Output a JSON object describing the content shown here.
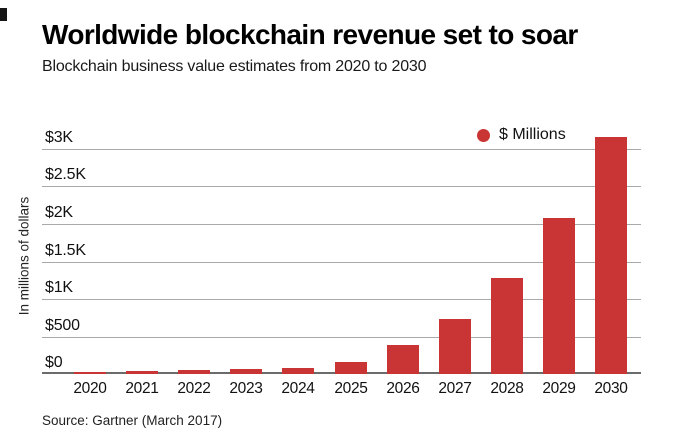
{
  "page": {
    "title": "Worldwide blockchain revenue set to soar",
    "subtitle": "Blockchain business value estimates from 2020 to 2030",
    "source": "Source: Gartner (March 2017)"
  },
  "legend": {
    "label": "$ Millions",
    "marker_color": "#c93434"
  },
  "y_axis_title": "In millions of dollars",
  "chart_data": {
    "type": "bar",
    "title": "Worldwide blockchain revenue set to soar",
    "subtitle": "Blockchain business value estimates from 2020 to 2030",
    "categories": [
      "2020",
      "2021",
      "2022",
      "2023",
      "2024",
      "2025",
      "2026",
      "2027",
      "2028",
      "2029",
      "2030"
    ],
    "values": [
      20,
      35,
      50,
      70,
      85,
      155,
      390,
      730,
      1280,
      2080,
      3160
    ],
    "series_name": "$ Millions",
    "xlabel": "",
    "ylabel": "In millions of dollars",
    "ylim": [
      0,
      3000
    ],
    "yticks": [
      0,
      500,
      1000,
      1500,
      2000,
      2500,
      3000
    ],
    "ytick_labels": [
      "$0",
      "$500",
      "$1K",
      "$1.5K",
      "$2K",
      "$2.5K",
      "$3K"
    ],
    "bar_color": "#c93434",
    "grid": true,
    "gridline_color": "#a9a9a9",
    "baseline_color": "#6b6b6b",
    "legend_position": "top-right",
    "source": "Source: Gartner (March 2017)"
  }
}
